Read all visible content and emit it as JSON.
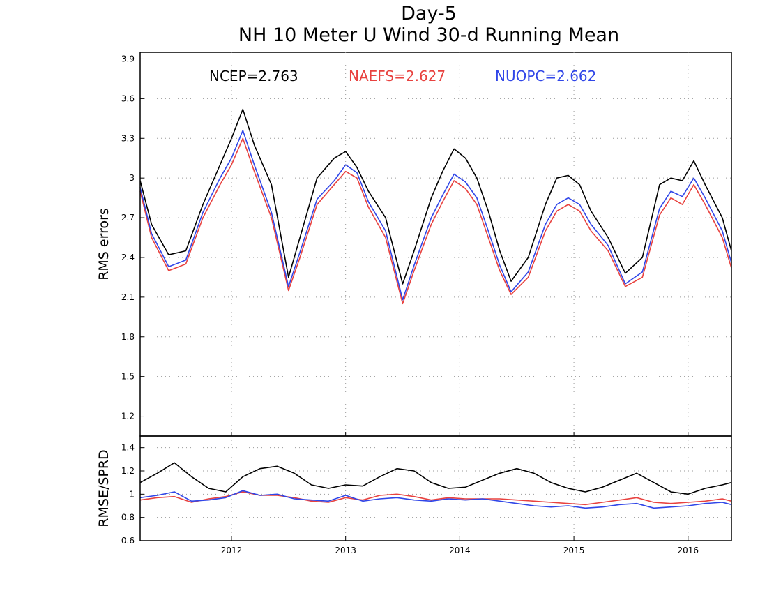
{
  "chart_data": [
    {
      "type": "line",
      "title": "Day-5",
      "subtitle": "NH 10 Meter U Wind 30-d Running Mean",
      "ylabel": "RMS errors",
      "ylim": [
        1.05,
        3.95
      ],
      "yticks": [
        "1.2",
        "1.5",
        "1.8",
        "2.1",
        "2.4",
        "2.7",
        "3",
        "3.3",
        "3.6",
        "3.9"
      ],
      "xlim": [
        2011.2,
        2016.38
      ],
      "grid": true,
      "legend_position": "top",
      "series": [
        {
          "name": "NCEP",
          "legend": "NCEP=2.763",
          "color": "#000000",
          "x": [
            2011.2,
            2011.3,
            2011.45,
            2011.6,
            2011.75,
            2011.9,
            2012.0,
            2012.1,
            2012.2,
            2012.35,
            2012.5,
            2012.6,
            2012.75,
            2012.9,
            2013.0,
            2013.1,
            2013.2,
            2013.35,
            2013.5,
            2013.6,
            2013.75,
            2013.85,
            2013.95,
            2014.05,
            2014.15,
            2014.25,
            2014.35,
            2014.45,
            2014.6,
            2014.75,
            2014.85,
            2014.95,
            2015.05,
            2015.15,
            2015.3,
            2015.45,
            2015.6,
            2015.75,
            2015.85,
            2015.95,
            2016.05,
            2016.15,
            2016.3,
            2016.38
          ],
          "values": [
            2.98,
            2.65,
            2.42,
            2.45,
            2.8,
            3.1,
            3.3,
            3.52,
            3.25,
            2.95,
            2.25,
            2.55,
            3.0,
            3.15,
            3.2,
            3.08,
            2.9,
            2.7,
            2.2,
            2.45,
            2.85,
            3.05,
            3.22,
            3.15,
            3.0,
            2.75,
            2.45,
            2.22,
            2.4,
            2.8,
            3.0,
            3.02,
            2.95,
            2.75,
            2.55,
            2.28,
            2.4,
            2.95,
            3.0,
            2.98,
            3.13,
            2.95,
            2.7,
            2.45
          ]
        },
        {
          "name": "NAEFS",
          "legend": "NAEFS=2.627",
          "color": "#e8423f",
          "x": [
            2011.2,
            2011.3,
            2011.45,
            2011.6,
            2011.75,
            2011.9,
            2012.0,
            2012.1,
            2012.2,
            2012.35,
            2012.5,
            2012.6,
            2012.75,
            2012.9,
            2013.0,
            2013.1,
            2013.2,
            2013.35,
            2013.5,
            2013.6,
            2013.75,
            2013.85,
            2013.95,
            2014.05,
            2014.15,
            2014.25,
            2014.35,
            2014.45,
            2014.6,
            2014.75,
            2014.85,
            2014.95,
            2015.05,
            2015.15,
            2015.3,
            2015.45,
            2015.6,
            2015.75,
            2015.85,
            2015.95,
            2016.05,
            2016.15,
            2016.3,
            2016.38
          ],
          "values": [
            2.9,
            2.55,
            2.3,
            2.35,
            2.7,
            2.95,
            3.1,
            3.3,
            3.05,
            2.7,
            2.15,
            2.4,
            2.8,
            2.95,
            3.05,
            3.0,
            2.78,
            2.55,
            2.05,
            2.3,
            2.65,
            2.82,
            2.98,
            2.92,
            2.8,
            2.55,
            2.3,
            2.12,
            2.25,
            2.6,
            2.75,
            2.8,
            2.75,
            2.6,
            2.45,
            2.18,
            2.25,
            2.72,
            2.85,
            2.8,
            2.95,
            2.8,
            2.55,
            2.32
          ]
        },
        {
          "name": "NUOPC",
          "legend": "NUOPC=2.662",
          "color": "#3046e8",
          "x": [
            2011.2,
            2011.3,
            2011.45,
            2011.6,
            2011.75,
            2011.9,
            2012.0,
            2012.1,
            2012.2,
            2012.35,
            2012.5,
            2012.6,
            2012.75,
            2012.9,
            2013.0,
            2013.1,
            2013.2,
            2013.35,
            2013.5,
            2013.6,
            2013.75,
            2013.85,
            2013.95,
            2014.05,
            2014.15,
            2014.25,
            2014.35,
            2014.45,
            2014.6,
            2014.75,
            2014.85,
            2014.95,
            2015.05,
            2015.15,
            2015.3,
            2015.45,
            2015.6,
            2015.75,
            2015.85,
            2015.95,
            2016.05,
            2016.15,
            2016.3,
            2016.38
          ],
          "values": [
            2.93,
            2.58,
            2.33,
            2.38,
            2.74,
            3.0,
            3.15,
            3.36,
            3.1,
            2.74,
            2.18,
            2.44,
            2.84,
            2.98,
            3.1,
            3.04,
            2.82,
            2.6,
            2.08,
            2.34,
            2.7,
            2.87,
            3.03,
            2.97,
            2.85,
            2.6,
            2.34,
            2.14,
            2.29,
            2.65,
            2.8,
            2.85,
            2.8,
            2.65,
            2.49,
            2.2,
            2.29,
            2.77,
            2.9,
            2.86,
            3.0,
            2.85,
            2.6,
            2.36
          ]
        }
      ]
    },
    {
      "type": "line",
      "ylabel": "RMSE/SPRD",
      "ylim": [
        0.6,
        1.5
      ],
      "yticks": [
        "0.6",
        "0.8",
        "1",
        "1.2",
        "1.4"
      ],
      "xlim": [
        2011.2,
        2016.38
      ],
      "xticks": [
        "2012",
        "2013",
        "2014",
        "2015",
        "2016"
      ],
      "grid": true,
      "series": [
        {
          "color": "#000000",
          "x": [
            2011.2,
            2011.35,
            2011.5,
            2011.65,
            2011.8,
            2011.95,
            2012.1,
            2012.25,
            2012.4,
            2012.55,
            2012.7,
            2012.85,
            2013.0,
            2013.15,
            2013.3,
            2013.45,
            2013.6,
            2013.75,
            2013.9,
            2014.05,
            2014.2,
            2014.35,
            2014.5,
            2014.65,
            2014.8,
            2014.95,
            2015.1,
            2015.25,
            2015.4,
            2015.55,
            2015.7,
            2015.85,
            2016.0,
            2016.15,
            2016.3,
            2016.38
          ],
          "values": [
            1.1,
            1.18,
            1.27,
            1.15,
            1.05,
            1.02,
            1.15,
            1.22,
            1.24,
            1.18,
            1.08,
            1.05,
            1.08,
            1.07,
            1.15,
            1.22,
            1.2,
            1.1,
            1.05,
            1.06,
            1.12,
            1.18,
            1.22,
            1.18,
            1.1,
            1.05,
            1.02,
            1.06,
            1.12,
            1.18,
            1.1,
            1.02,
            1.0,
            1.05,
            1.08,
            1.1
          ]
        },
        {
          "color": "#e8423f",
          "x": [
            2011.2,
            2011.35,
            2011.5,
            2011.65,
            2011.8,
            2011.95,
            2012.1,
            2012.25,
            2012.4,
            2012.55,
            2012.7,
            2012.85,
            2013.0,
            2013.15,
            2013.3,
            2013.45,
            2013.6,
            2013.75,
            2013.9,
            2014.05,
            2014.2,
            2014.35,
            2014.5,
            2014.65,
            2014.8,
            2014.95,
            2015.1,
            2015.25,
            2015.4,
            2015.55,
            2015.7,
            2015.85,
            2016.0,
            2016.15,
            2016.3,
            2016.38
          ],
          "values": [
            0.95,
            0.97,
            0.98,
            0.93,
            0.96,
            0.98,
            1.02,
            0.99,
            0.99,
            0.97,
            0.94,
            0.93,
            0.97,
            0.95,
            0.99,
            1.0,
            0.98,
            0.95,
            0.97,
            0.96,
            0.96,
            0.96,
            0.95,
            0.94,
            0.93,
            0.92,
            0.91,
            0.93,
            0.95,
            0.97,
            0.93,
            0.92,
            0.93,
            0.94,
            0.96,
            0.94
          ]
        },
        {
          "color": "#3046e8",
          "x": [
            2011.2,
            2011.35,
            2011.5,
            2011.65,
            2011.8,
            2011.95,
            2012.1,
            2012.25,
            2012.4,
            2012.55,
            2012.7,
            2012.85,
            2013.0,
            2013.15,
            2013.3,
            2013.45,
            2013.6,
            2013.75,
            2013.9,
            2014.05,
            2014.2,
            2014.35,
            2014.5,
            2014.65,
            2014.8,
            2014.95,
            2015.1,
            2015.25,
            2015.4,
            2015.55,
            2015.7,
            2015.85,
            2016.0,
            2016.15,
            2016.3,
            2016.38
          ],
          "values": [
            0.97,
            0.99,
            1.02,
            0.94,
            0.95,
            0.97,
            1.03,
            0.99,
            1.0,
            0.96,
            0.95,
            0.94,
            0.99,
            0.94,
            0.96,
            0.97,
            0.95,
            0.94,
            0.96,
            0.95,
            0.96,
            0.94,
            0.92,
            0.9,
            0.89,
            0.9,
            0.88,
            0.89,
            0.91,
            0.92,
            0.88,
            0.89,
            0.9,
            0.92,
            0.93,
            0.91
          ]
        }
      ]
    }
  ]
}
